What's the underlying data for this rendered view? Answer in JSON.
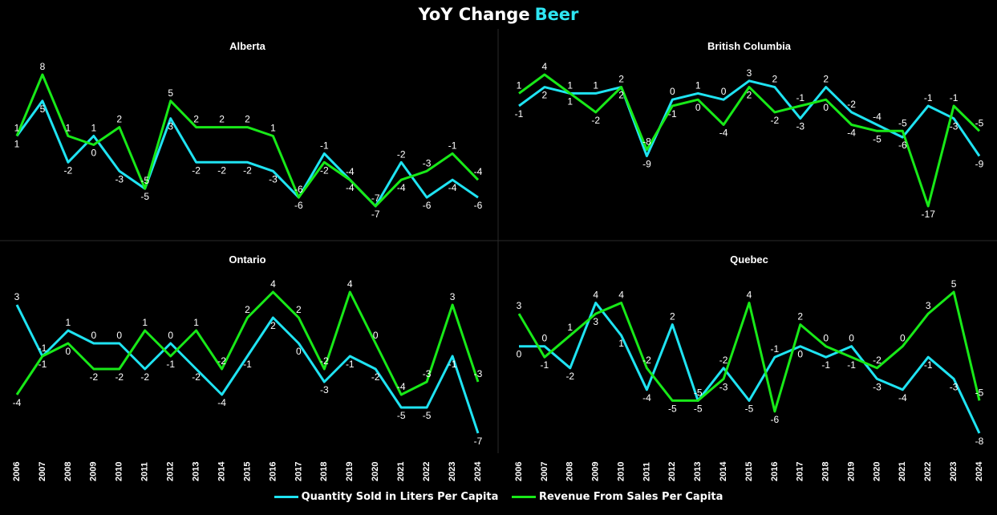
{
  "title": {
    "text": "YoY Change",
    "measure": "Beer"
  },
  "colors": {
    "background": "#000000",
    "quantity": "#1FE3F2",
    "revenue": "#18E918",
    "divider": "#2a2a2a",
    "text": "#ffffff",
    "measure": "#2EE5F2"
  },
  "legend": [
    {
      "label": "Quantity Sold in Liters Per Capita",
      "color": "#1FE3F2"
    },
    {
      "label": "Revenue From Sales Per Capita",
      "color": "#18E918"
    }
  ],
  "chart_data": [
    {
      "type": "line",
      "title": "Alberta",
      "x": [
        "2006",
        "2007",
        "2008",
        "2009",
        "2010",
        "2011",
        "2012",
        "2013",
        "2014",
        "2015",
        "2016",
        "2017",
        "2018",
        "2019",
        "2020",
        "2021",
        "2022",
        "2023",
        "2024"
      ],
      "series": [
        {
          "name": "Quantity Sold in Liters Per Capita",
          "values": [
            1,
            5,
            -2,
            1,
            -3,
            -5,
            3,
            -2,
            -2,
            -2,
            -3,
            -6,
            -1,
            -4,
            -7,
            -2,
            -6,
            -4,
            -6
          ]
        },
        {
          "name": "Revenue From Sales Per Capita",
          "values": [
            1,
            8,
            1,
            0,
            2,
            -5,
            5,
            2,
            2,
            2,
            1,
            -6,
            -2,
            -4,
            -7,
            -4,
            -3,
            -1,
            -4
          ]
        }
      ]
    },
    {
      "type": "line",
      "title": "British Columbia",
      "x": [
        "2006",
        "2007",
        "2008",
        "2009",
        "2010",
        "2011",
        "2012",
        "2013",
        "2014",
        "2015",
        "2016",
        "2017",
        "2018",
        "2019",
        "2020",
        "2021",
        "2022",
        "2023",
        "2024"
      ],
      "series": [
        {
          "name": "Quantity Sold in Liters Per Capita",
          "values": [
            -1,
            2,
            1,
            1,
            2,
            -9,
            0,
            1,
            0,
            3,
            2,
            -3,
            2,
            -2,
            -4,
            -6,
            -1,
            -3,
            -9
          ]
        },
        {
          "name": "Revenue From Sales Per Capita",
          "values": [
            1,
            4,
            1,
            -2,
            2,
            -8,
            -1,
            0,
            -4,
            2,
            -2,
            -1,
            0,
            -4,
            -5,
            -5,
            -17,
            -1,
            -5
          ]
        }
      ]
    },
    {
      "type": "line",
      "title": "Ontario",
      "x": [
        "2006",
        "2007",
        "2008",
        "2009",
        "2010",
        "2011",
        "2012",
        "2013",
        "2014",
        "2015",
        "2016",
        "2017",
        "2018",
        "2019",
        "2020",
        "2021",
        "2022",
        "2023",
        "2024"
      ],
      "series": [
        {
          "name": "Quantity Sold in Liters Per Capita",
          "values": [
            3,
            -1,
            1,
            0,
            0,
            -2,
            0,
            -2,
            -4,
            -1,
            2,
            0,
            -3,
            -1,
            -2,
            -5,
            -5,
            -1,
            -7
          ]
        },
        {
          "name": "Revenue From Sales Per Capita",
          "values": [
            -4,
            -1,
            0,
            -2,
            -2,
            1,
            -1,
            1,
            -2,
            2,
            4,
            2,
            -2,
            4,
            0,
            -4,
            -3,
            3,
            -3
          ]
        }
      ]
    },
    {
      "type": "line",
      "title": "Quebec",
      "x": [
        "2006",
        "2007",
        "2008",
        "2009",
        "2010",
        "2011",
        "2012",
        "2013",
        "2014",
        "2015",
        "2016",
        "2017",
        "2018",
        "2019",
        "2020",
        "2021",
        "2022",
        "2023",
        "2024"
      ],
      "series": [
        {
          "name": "Quantity Sold in Liters Per Capita",
          "values": [
            0,
            0,
            -2,
            4,
            1,
            -4,
            2,
            -5,
            -2,
            -5,
            -1,
            0,
            -1,
            0,
            -3,
            -4,
            -1,
            -3,
            -8
          ]
        },
        {
          "name": "Revenue From Sales Per Capita",
          "values": [
            3,
            -1,
            1,
            3,
            4,
            -2,
            -5,
            -5,
            -3,
            4,
            -6,
            2,
            0,
            -1,
            -2,
            0,
            3,
            5,
            -5
          ]
        }
      ]
    }
  ]
}
